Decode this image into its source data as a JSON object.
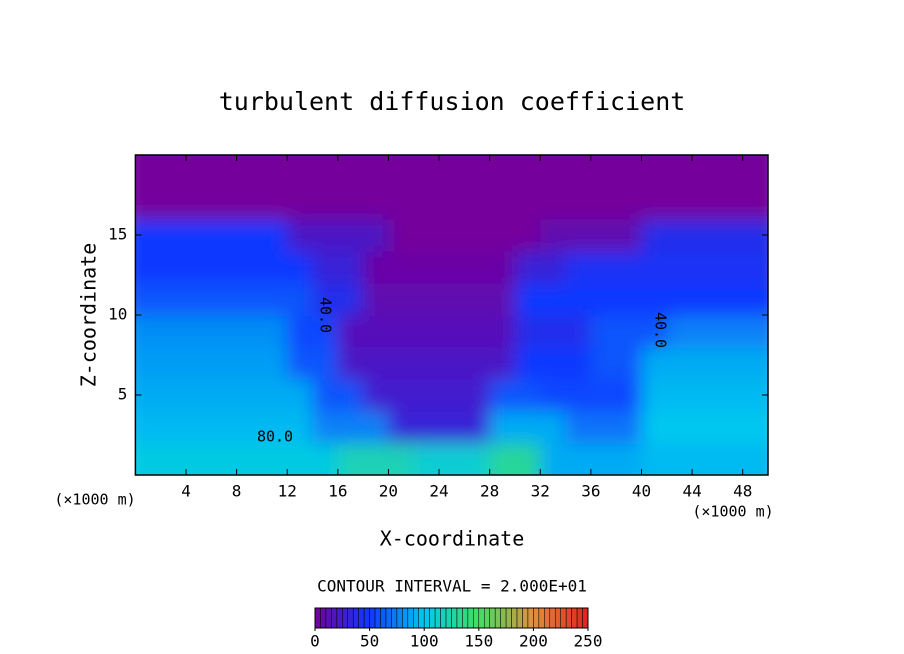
{
  "chart_data": {
    "type": "heatmap",
    "title": "turbulent diffusion coefficient",
    "x_label": "X-coordinate",
    "y_label": "Z-coordinate",
    "x_unit_label": "(×1000 m)",
    "contour_interval_text": "CONTOUR INTERVAL = 2.000E+01",
    "contour_labels": [
      "40.0",
      "40.0",
      "80.0"
    ],
    "xlim": [
      0,
      50
    ],
    "ylim": [
      0,
      20
    ],
    "xticks": [
      4,
      8,
      12,
      16,
      20,
      24,
      28,
      32,
      36,
      40,
      44,
      48
    ],
    "yticks": [
      5,
      10,
      15
    ],
    "x": [
      1,
      3,
      5,
      7,
      9,
      11,
      13,
      15,
      17,
      19,
      21,
      23,
      25,
      27,
      29,
      31,
      33,
      35,
      37,
      39,
      41,
      43,
      45,
      47,
      49
    ],
    "y": [
      1,
      3,
      5,
      7,
      9,
      11,
      13,
      15,
      17,
      19
    ],
    "values": [
      [
        105,
        105,
        105,
        105,
        105,
        105,
        105,
        105,
        120,
        120,
        120,
        110,
        110,
        110,
        130,
        130,
        90,
        90,
        90,
        90,
        95,
        95,
        95,
        95,
        95
      ],
      [
        95,
        95,
        95,
        95,
        95,
        95,
        95,
        75,
        75,
        75,
        30,
        30,
        30,
        30,
        90,
        90,
        90,
        70,
        70,
        70,
        100,
        100,
        100,
        100,
        100
      ],
      [
        90,
        90,
        90,
        90,
        90,
        90,
        90,
        60,
        60,
        25,
        25,
        25,
        25,
        25,
        60,
        60,
        55,
        55,
        55,
        55,
        95,
        95,
        95,
        95,
        95
      ],
      [
        85,
        85,
        85,
        85,
        85,
        85,
        60,
        60,
        20,
        20,
        20,
        20,
        20,
        20,
        20,
        50,
        50,
        50,
        60,
        60,
        90,
        90,
        90,
        90,
        90
      ],
      [
        80,
        80,
        80,
        80,
        80,
        80,
        55,
        55,
        15,
        15,
        15,
        15,
        15,
        15,
        15,
        40,
        40,
        40,
        60,
        60,
        60,
        75,
        75,
        75,
        75
      ],
      [
        60,
        60,
        60,
        60,
        60,
        60,
        60,
        40,
        40,
        10,
        10,
        10,
        10,
        10,
        10,
        50,
        50,
        50,
        50,
        50,
        50,
        50,
        50,
        50,
        50
      ],
      [
        50,
        50,
        50,
        50,
        50,
        50,
        50,
        30,
        30,
        5,
        5,
        5,
        5,
        5,
        5,
        30,
        30,
        45,
        45,
        45,
        45,
        45,
        45,
        45,
        45
      ],
      [
        50,
        50,
        50,
        50,
        50,
        50,
        20,
        20,
        20,
        20,
        0,
        0,
        0,
        0,
        0,
        0,
        10,
        10,
        10,
        10,
        40,
        40,
        40,
        40,
        40
      ],
      [
        0,
        0,
        0,
        0,
        0,
        0,
        0,
        0,
        0,
        0,
        0,
        0,
        0,
        0,
        0,
        0,
        0,
        0,
        0,
        0,
        0,
        0,
        0,
        0,
        0
      ],
      [
        0,
        0,
        0,
        0,
        0,
        0,
        0,
        0,
        0,
        0,
        0,
        0,
        0,
        0,
        0,
        0,
        0,
        0,
        0,
        0,
        0,
        0,
        0,
        0,
        0
      ]
    ],
    "colorbar": {
      "lim": [
        0,
        250
      ],
      "ticks": [
        0,
        50,
        100,
        150,
        200,
        250
      ],
      "colors": [
        "#74009c",
        "#1038ff",
        "#00c8f0",
        "#40e060",
        "#e09040",
        "#e02020"
      ]
    }
  }
}
